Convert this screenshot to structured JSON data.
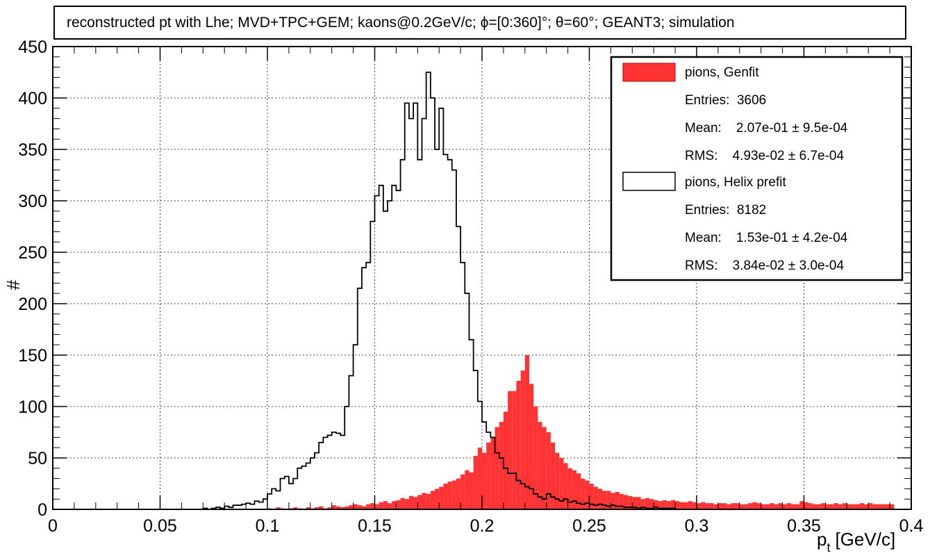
{
  "chart_data": {
    "type": "histogram",
    "title": "reconstructed pt with Lhe; MVD+TPC+GEM; kaons@0.2GeV/c;",
    "title_phi": "ϕ=[0:360]°;",
    "title_theta": "θ=60°;",
    "title_tail": "GEANT3; simulation",
    "xlabel_main": "p",
    "xlabel_sub": "t",
    "xlabel_unit": "[GeV/c]",
    "ylabel": "#",
    "xlim": [
      0,
      0.4
    ],
    "ylim": [
      0,
      450
    ],
    "x_ticks": [
      {
        "v": 0,
        "label": "0"
      },
      {
        "v": 0.05,
        "label": "0.05"
      },
      {
        "v": 0.1,
        "label": "0.1"
      },
      {
        "v": 0.15,
        "label": "0.15"
      },
      {
        "v": 0.2,
        "label": "0.2"
      },
      {
        "v": 0.25,
        "label": "0.25"
      },
      {
        "v": 0.3,
        "label": "0.3"
      },
      {
        "v": 0.35,
        "label": "0.35"
      },
      {
        "v": 0.4,
        "label": "0.4"
      }
    ],
    "y_ticks": [
      {
        "v": 0,
        "label": "0"
      },
      {
        "v": 50,
        "label": "50"
      },
      {
        "v": 100,
        "label": "100"
      },
      {
        "v": 150,
        "label": "150"
      },
      {
        "v": 200,
        "label": "200"
      },
      {
        "v": 250,
        "label": "250"
      },
      {
        "v": 300,
        "label": "300"
      },
      {
        "v": 350,
        "label": "350"
      },
      {
        "v": 400,
        "label": "400"
      },
      {
        "v": 450,
        "label": "450"
      }
    ],
    "grid": true,
    "legend_position": "top-right",
    "series": [
      {
        "name": "pions, Genfit",
        "style": "filled",
        "color": "#ff3333",
        "stats": {
          "entries": "Entries:  3606",
          "mean": "Mean:    2.07e-01 ± 9.5e-04",
          "rms": "RMS:    4.93e-02 ± 6.7e-04"
        },
        "x_start": 0.1,
        "bin_width": 0.002,
        "values": [
          1,
          0,
          2,
          1,
          0,
          1,
          2,
          1,
          0,
          2,
          1,
          2,
          3,
          1,
          2,
          4,
          3,
          2,
          3,
          4,
          5,
          4,
          3,
          5,
          6,
          5,
          7,
          8,
          6,
          8,
          9,
          11,
          10,
          13,
          12,
          14,
          16,
          15,
          18,
          20,
          22,
          25,
          27,
          28,
          30,
          34,
          38,
          36,
          52,
          60,
          55,
          65,
          70,
          80,
          85,
          95,
          115,
          115,
          125,
          135,
          150,
          122,
          100,
          85,
          80,
          75,
          65,
          55,
          50,
          45,
          40,
          38,
          35,
          30,
          28,
          25,
          22,
          20,
          18,
          18,
          16,
          17,
          15,
          14,
          13,
          12,
          12,
          10,
          11,
          10,
          9,
          8,
          9,
          8,
          9,
          8,
          7,
          7,
          8,
          7,
          6,
          7,
          6,
          6,
          5,
          6,
          6,
          5,
          6,
          6,
          5,
          5,
          6,
          7,
          6,
          5,
          5,
          6,
          5,
          6,
          5,
          6,
          5,
          5,
          8,
          7,
          6,
          5,
          5,
          6,
          5,
          5,
          6,
          5,
          6,
          5,
          5,
          5,
          6,
          5,
          6,
          5,
          5,
          5,
          5,
          5
        ]
      },
      {
        "name": "pions, Helix prefit",
        "style": "outline",
        "color": "#000000",
        "stats": {
          "entries": "Entries:  8182",
          "mean": "Mean:    1.53e-01 ± 4.2e-04",
          "rms": "RMS:    3.84e-02 ± 3.0e-04"
        },
        "x_start": 0.07,
        "bin_width": 0.002,
        "values": [
          1,
          0,
          1,
          2,
          1,
          3,
          2,
          4,
          4,
          5,
          6,
          5,
          8,
          7,
          10,
          15,
          20,
          18,
          30,
          32,
          25,
          30,
          40,
          42,
          45,
          50,
          55,
          65,
          70,
          72,
          75,
          74,
          72,
          100,
          130,
          160,
          215,
          235,
          240,
          280,
          305,
          315,
          290,
          300,
          315,
          310,
          340,
          395,
          380,
          395,
          340,
          380,
          425,
          400,
          350,
          390,
          345,
          340,
          330,
          275,
          240,
          210,
          165,
          135,
          105,
          85,
          75,
          70,
          55,
          50,
          40,
          35,
          35,
          28,
          25,
          22,
          20,
          15,
          12,
          10,
          15,
          12,
          10,
          8,
          10,
          7,
          8,
          6,
          5,
          6,
          5,
          4,
          5,
          4,
          3,
          4,
          3,
          3,
          2,
          2,
          2,
          1,
          2,
          1,
          1,
          2,
          1,
          1,
          1,
          1
        ]
      }
    ]
  }
}
